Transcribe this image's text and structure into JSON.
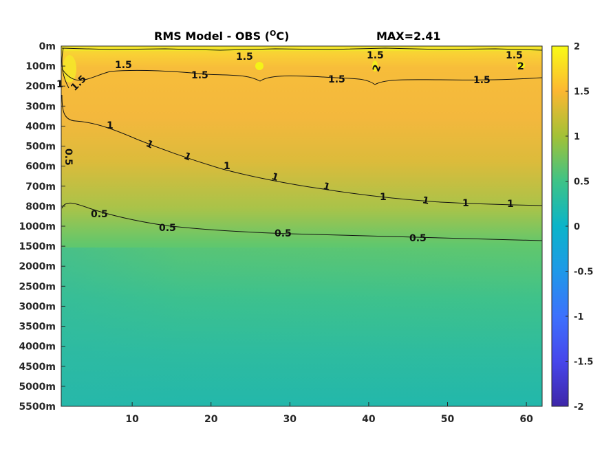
{
  "chart_data": {
    "type": "heatmap",
    "title": "RMS Model - OBS (",
    "title_unit_super": "O",
    "title_unit_end": "C)",
    "max_label": "MAX=2.41",
    "x_ticks": [
      "10",
      "20",
      "30",
      "40",
      "50",
      "60"
    ],
    "x_tick_values": [
      10,
      20,
      30,
      40,
      50,
      60
    ],
    "xlim": [
      1,
      62
    ],
    "y_ticks": [
      "0m",
      "100m",
      "200m",
      "300m",
      "400m",
      "500m",
      "600m",
      "700m",
      "800m",
      "1000m",
      "1500m",
      "2000m",
      "2500m",
      "3000m",
      "3500m",
      "4000m",
      "4500m",
      "5000m",
      "5500m"
    ],
    "colorbar_ticks": [
      "2",
      "1.5",
      "1",
      "0.5",
      "0",
      "-0.5",
      "-1",
      "-1.5",
      "-2"
    ],
    "colorbar_values": [
      2,
      1.5,
      1,
      0.5,
      0,
      -0.5,
      -1,
      -1.5,
      -2
    ],
    "clim": [
      -2,
      2
    ],
    "colormap": "parula",
    "contours": [
      {
        "level": "1.5",
        "label_x": [
          22,
          40,
          59
        ],
        "label_depth_index": [
          0.55,
          0.45,
          0.5
        ]
      },
      {
        "level": "1.5",
        "label_x": [
          3,
          8,
          18,
          35,
          55
        ],
        "label_depth_index": [
          1.5,
          1.0,
          1.5,
          1.7,
          1.7
        ]
      },
      {
        "level": "2",
        "label_x": [
          41,
          59
        ],
        "label_depth_index": [
          1.1,
          1.1
        ]
      },
      {
        "level": "1",
        "label_x": [
          7,
          12,
          17,
          21,
          27,
          36,
          41,
          47,
          53,
          57
        ],
        "label_depth_index": [
          4.0,
          4.9,
          5.6,
          6.0,
          6.6,
          7.0,
          7.6,
          7.9,
          8.0,
          8.0
        ]
      },
      {
        "level": "0.5",
        "label_x": [
          0.9,
          6,
          14,
          28,
          46
        ],
        "label_depth_index": [
          5.4,
          8.5,
          9.1,
          9.4,
          9.6
        ]
      }
    ]
  }
}
